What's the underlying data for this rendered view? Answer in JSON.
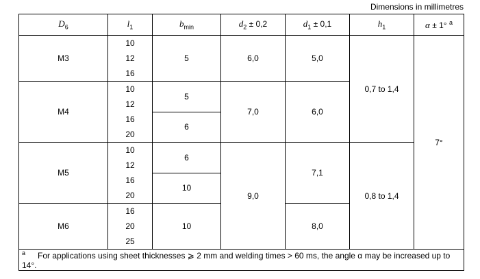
{
  "caption": "Dimensions in millimetres",
  "table": {
    "header": [
      {
        "symbol": "D",
        "sub": "6"
      },
      {
        "symbol": "l",
        "sub": "1"
      },
      {
        "symbol": "b",
        "sub": "min"
      },
      {
        "symbol": "d",
        "sub": "2",
        "tolerance": "± 0,2"
      },
      {
        "symbol": "d",
        "sub": "1",
        "tolerance": "± 0,1"
      },
      {
        "symbol": "h",
        "sub": "1"
      },
      {
        "symbol": "α",
        "tolerance": "± 1°",
        "note": "a"
      }
    ],
    "d6": [
      "M3",
      "M4",
      "M5",
      "M6"
    ],
    "l1": [
      "10",
      "12",
      "16",
      "10",
      "12",
      "16",
      "20",
      "10",
      "12",
      "16",
      "20",
      "16",
      "20",
      "25"
    ],
    "b_min": [
      "5",
      "5",
      "6",
      "6",
      "10",
      "10"
    ],
    "d2": [
      "6,0",
      "7,0",
      "9,0"
    ],
    "d1": [
      "5,0",
      "6,0",
      "7,1",
      "8,0"
    ],
    "h1": [
      "0,7 to 1,4",
      "0,8 to 1,4"
    ],
    "alpha": "7°",
    "footnote": {
      "marker": "a",
      "text": "For applications using sheet thicknesses ⩾ 2 mm and welding times > 60 ms, the angle α may be increased up to 14°."
    }
  }
}
